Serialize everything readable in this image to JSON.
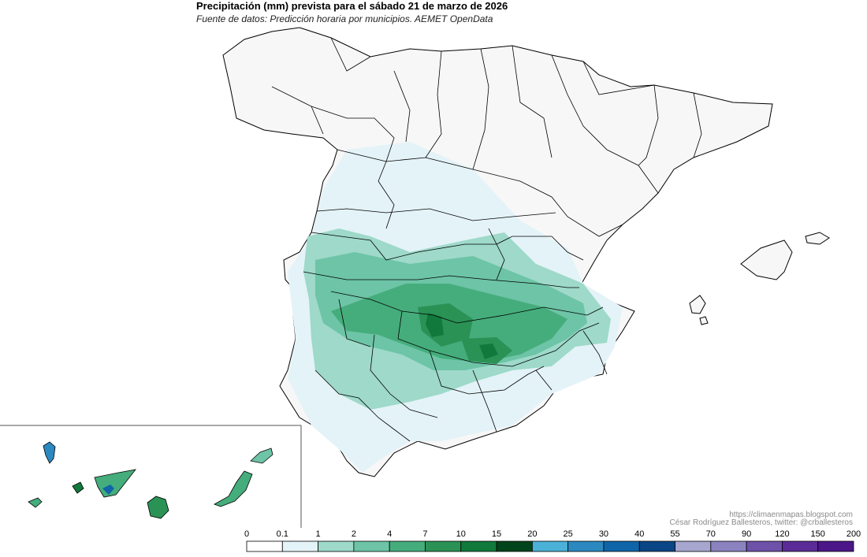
{
  "header": {
    "title": "Precipitación (mm) prevista para el sábado 21 de marzo de 2026",
    "subtitle": "Fuente de datos: Predicción horaria por municipios. AEMET OpenData"
  },
  "credits": {
    "url": "https://climaenmapas.blogspot.com",
    "author": "César Rodríguez Ballesteros, twitter: @crballesteros"
  },
  "legend": {
    "thresholds": [
      "0",
      "0.1",
      "1",
      "2",
      "4",
      "7",
      "10",
      "15",
      "20",
      "25",
      "30",
      "40",
      "55",
      "70",
      "90",
      "120",
      "150",
      "200"
    ],
    "colors": [
      "#ffffff",
      "#e4f3f8",
      "#9ed9c9",
      "#6dc4a6",
      "#45ad7c",
      "#2a9255",
      "#11793c",
      "#00441b",
      "#4cb1d7",
      "#2c89c0",
      "#1065a8",
      "#0a4585",
      "#a6a6cf",
      "#8a83c0",
      "#6e51a8",
      "#5b2c97",
      "#4b1688",
      "#3a0078"
    ]
  },
  "colors": {
    "land": "#f7f7f7",
    "border": "#000000",
    "credit_text": "#8a8a8a"
  }
}
